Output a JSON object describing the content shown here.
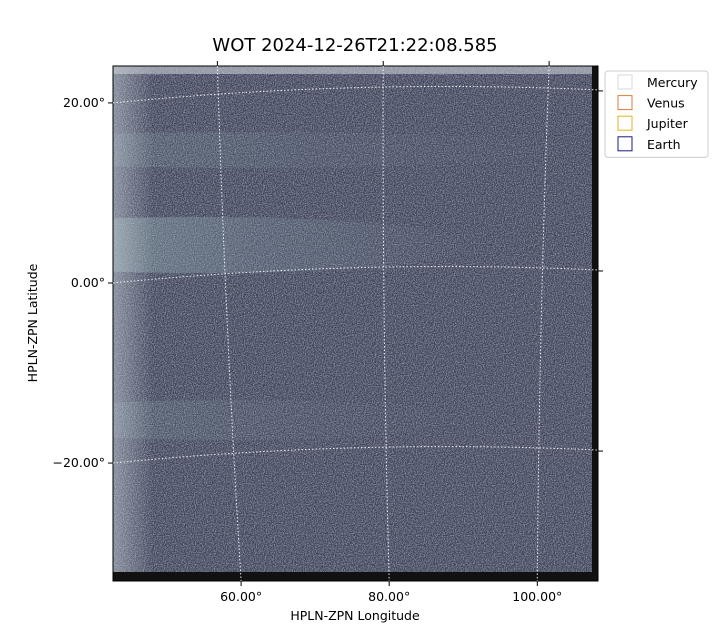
{
  "chart_data": {
    "type": "image",
    "title": "WOT 2024-12-26T21:22:08.585",
    "xlabel": "HPLN-ZPN Longitude",
    "ylabel": "HPLN-ZPN Latitude",
    "xlim": [
      42.7,
      108.2
    ],
    "ylim": [
      -33.1,
      24.1
    ],
    "xticks": [
      {
        "value": 60,
        "label": "60.00°"
      },
      {
        "value": 80,
        "label": "80.00°"
      },
      {
        "value": 100,
        "label": "100.00°"
      }
    ],
    "yticks": [
      {
        "value": -20,
        "label": "−20.00°"
      },
      {
        "value": 0,
        "label": "0.00°"
      },
      {
        "value": 20,
        "label": "20.00°"
      }
    ],
    "grid": true,
    "legend": "upper right",
    "series": [
      {
        "name": "Mercury",
        "color": "#d9d9d9"
      },
      {
        "name": "Venus",
        "color": "#e07b39"
      },
      {
        "name": "Jupiter",
        "color": "#e0b020"
      },
      {
        "name": "Earth",
        "color": "#1a1a80"
      }
    ]
  }
}
